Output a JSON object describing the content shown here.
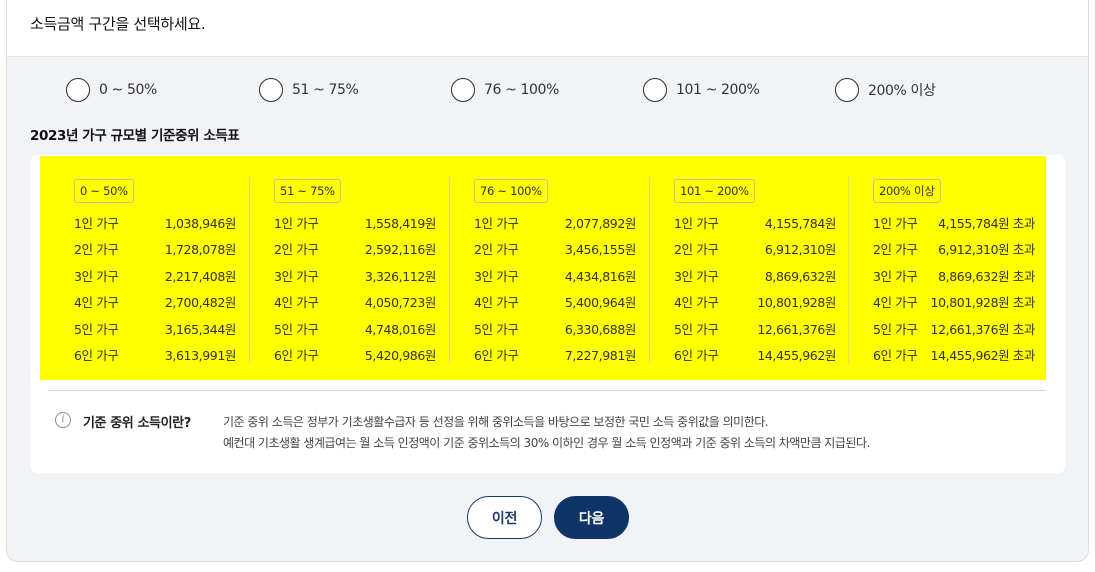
{
  "header": {
    "title": "소득금액 구간을 선택하세요."
  },
  "radio_options": [
    {
      "label": "0 ~ 50%"
    },
    {
      "label": "51 ~ 75%"
    },
    {
      "label": "76 ~ 100%"
    },
    {
      "label": "101 ~ 200%"
    },
    {
      "label": "200% 이상"
    }
  ],
  "table": {
    "title": "2023년 가구 규모별 기준중위 소득표",
    "columns": [
      {
        "badge": "0 ~ 50%",
        "rows": [
          {
            "household": "1인 가구",
            "amount": "1,038,946원"
          },
          {
            "household": "2인 가구",
            "amount": "1,728,078원"
          },
          {
            "household": "3인 가구",
            "amount": "2,217,408원"
          },
          {
            "household": "4인 가구",
            "amount": "2,700,482원"
          },
          {
            "household": "5인 가구",
            "amount": "3,165,344원"
          },
          {
            "household": "6인 가구",
            "amount": "3,613,991원"
          }
        ]
      },
      {
        "badge": "51 ~ 75%",
        "rows": [
          {
            "household": "1인 가구",
            "amount": "1,558,419원"
          },
          {
            "household": "2인 가구",
            "amount": "2,592,116원"
          },
          {
            "household": "3인 가구",
            "amount": "3,326,112원"
          },
          {
            "household": "4인 가구",
            "amount": "4,050,723원"
          },
          {
            "household": "5인 가구",
            "amount": "4,748,016원"
          },
          {
            "household": "6인 가구",
            "amount": "5,420,986원"
          }
        ]
      },
      {
        "badge": "76 ~ 100%",
        "rows": [
          {
            "household": "1인 가구",
            "amount": "2,077,892원"
          },
          {
            "household": "2인 가구",
            "amount": "3,456,155원"
          },
          {
            "household": "3인 가구",
            "amount": "4,434,816원"
          },
          {
            "household": "4인 가구",
            "amount": "5,400,964원"
          },
          {
            "household": "5인 가구",
            "amount": "6,330,688원"
          },
          {
            "household": "6인 가구",
            "amount": "7,227,981원"
          }
        ]
      },
      {
        "badge": "101 ~ 200%",
        "rows": [
          {
            "household": "1인 가구",
            "amount": "4,155,784원"
          },
          {
            "household": "2인 가구",
            "amount": "6,912,310원"
          },
          {
            "household": "3인 가구",
            "amount": "8,869,632원"
          },
          {
            "household": "4인 가구",
            "amount": "10,801,928원"
          },
          {
            "household": "5인 가구",
            "amount": "12,661,376원"
          },
          {
            "household": "6인 가구",
            "amount": "14,455,962원"
          }
        ]
      },
      {
        "badge": "200% 이상",
        "rows": [
          {
            "household": "1인 가구",
            "amount": "4,155,784원 초과"
          },
          {
            "household": "2인 가구",
            "amount": "6,912,310원 초과"
          },
          {
            "household": "3인 가구",
            "amount": "8,869,632원 초과"
          },
          {
            "household": "4인 가구",
            "amount": "10,801,928원 초과"
          },
          {
            "household": "5인 가구",
            "amount": "12,661,376원 초과"
          },
          {
            "household": "6인 가구",
            "amount": "14,455,962원 초과"
          }
        ]
      }
    ]
  },
  "info": {
    "icon": "info-icon",
    "icon_glyph": "i",
    "title": "기준 중위 소득이란?",
    "line1": "기준 중위 소득은 정부가 기초생활수급자 등 선정을 위해 중위소득을 바탕으로 보정한 국민 소득 중위값을 의미한다.",
    "line2": "예컨대 기초생활 생계급여는 월 소득 인정액이 기준 중위소득의 30% 이하인 경우 월 소득 인정액과 기준 중위 소득의 차액만큼 지급된다."
  },
  "buttons": {
    "prev": "이전",
    "next": "다음"
  },
  "colors": {
    "highlight": "#ffff00",
    "primary": "#0f3468",
    "background": "#f1f3f7"
  }
}
